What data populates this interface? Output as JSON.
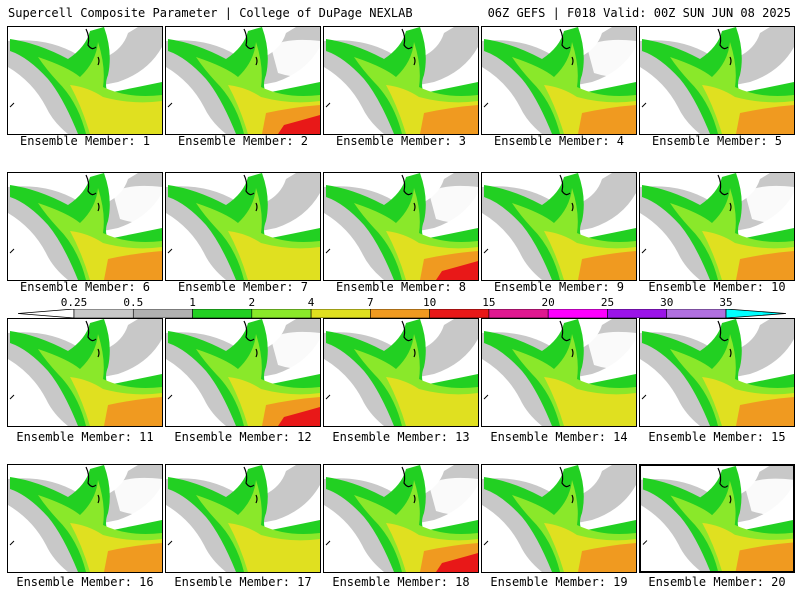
{
  "header": {
    "left": "Supercell Composite Parameter | College of DuPage NEXLAB",
    "right": "06Z GEFS | F018 Valid: 00Z SUN JUN 08 2025"
  },
  "colorbar": {
    "tick_labels": [
      "0.25",
      "0.5",
      "1",
      "2",
      "4",
      "7",
      "10",
      "15",
      "20",
      "25",
      "30",
      "35"
    ],
    "colors": [
      "#c8c8c8",
      "#b0b0b0",
      "#22d022",
      "#8ae82a",
      "#e0e020",
      "#f09a20",
      "#e81818",
      "#e01890",
      "#ff00ff",
      "#9b14e8",
      "#b070e0",
      "#00ffff"
    ]
  },
  "members": [
    {
      "label": "Ensemble Member: 1",
      "intensity": 2
    },
    {
      "label": "Ensemble Member: 2",
      "intensity": 4
    },
    {
      "label": "Ensemble Member: 3",
      "intensity": 3
    },
    {
      "label": "Ensemble Member: 4",
      "intensity": 3
    },
    {
      "label": "Ensemble Member: 5",
      "intensity": 3
    },
    {
      "label": "Ensemble Member: 6",
      "intensity": 3
    },
    {
      "label": "Ensemble Member: 7",
      "intensity": 2
    },
    {
      "label": "Ensemble Member: 8",
      "intensity": 4
    },
    {
      "label": "Ensemble Member: 9",
      "intensity": 3
    },
    {
      "label": "Ensemble Member: 10",
      "intensity": 3
    },
    {
      "label": "Ensemble Member: 11",
      "intensity": 3
    },
    {
      "label": "Ensemble Member: 12",
      "intensity": 4
    },
    {
      "label": "Ensemble Member: 13",
      "intensity": 2
    },
    {
      "label": "Ensemble Member: 14",
      "intensity": 2
    },
    {
      "label": "Ensemble Member: 15",
      "intensity": 3
    },
    {
      "label": "Ensemble Member: 16",
      "intensity": 3
    },
    {
      "label": "Ensemble Member: 17",
      "intensity": 2
    },
    {
      "label": "Ensemble Member: 18",
      "intensity": 4
    },
    {
      "label": "Ensemble Member: 19",
      "intensity": 3
    },
    {
      "label": "Ensemble Member: 20",
      "intensity": 3,
      "selected": true
    }
  ]
}
